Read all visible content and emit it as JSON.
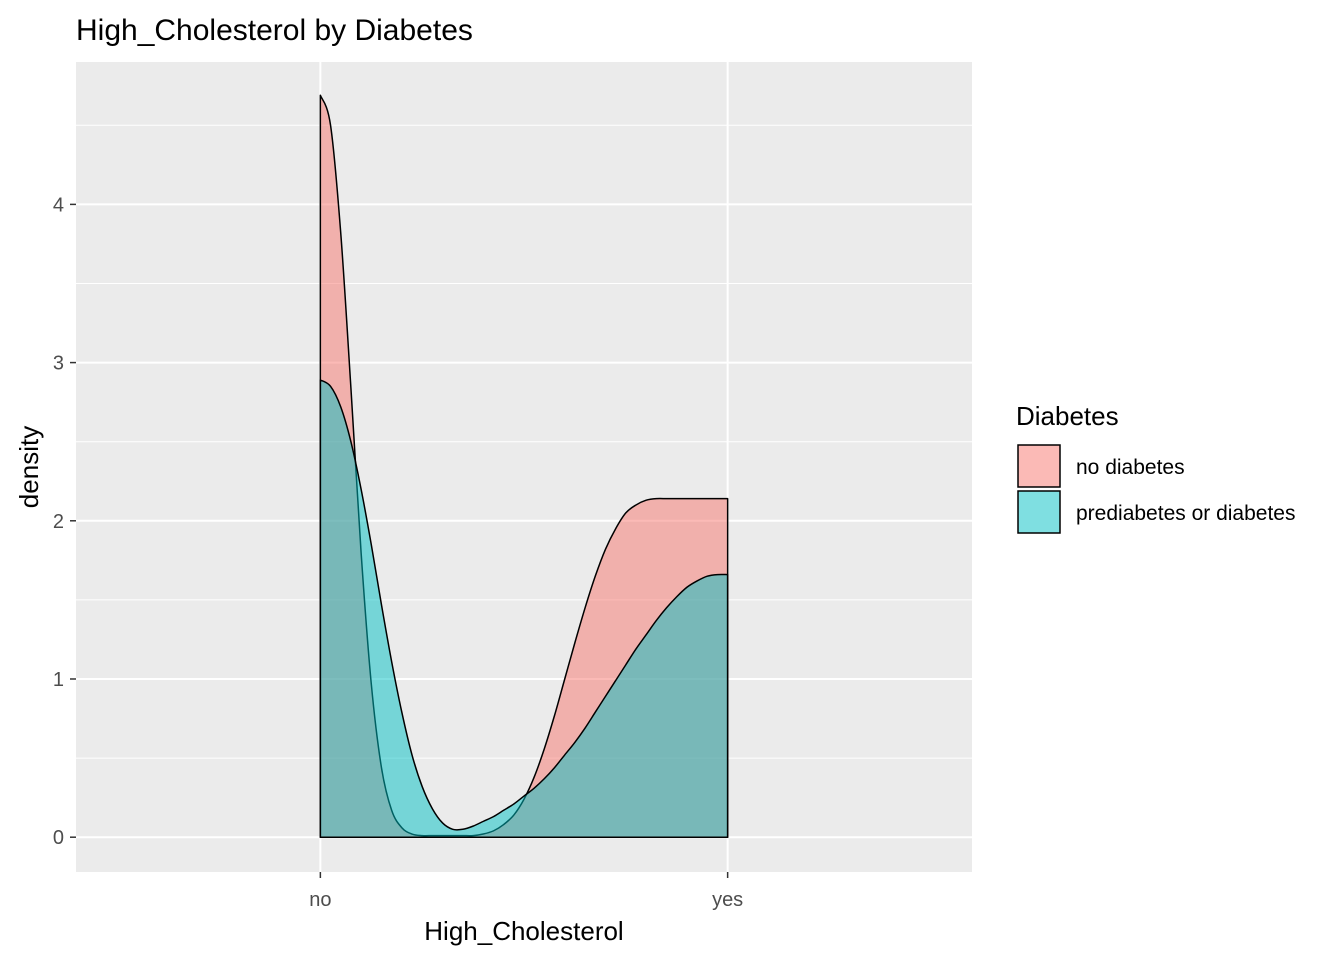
{
  "chart_data": {
    "type": "area",
    "title": "High_Cholesterol by Diabetes",
    "xlabel": "High_Cholesterol",
    "ylabel": "density",
    "x_categories": [
      "no",
      "yes"
    ],
    "x_range": [
      -0.6,
      1.6
    ],
    "ylim": [
      -0.22,
      4.9
    ],
    "y_ticks": [
      0,
      1,
      2,
      3,
      4
    ],
    "grid": true,
    "legend": {
      "title": "Diabetes",
      "placement": "right"
    },
    "series": [
      {
        "name": "no diabetes",
        "color": "#F8766D",
        "x": [
          0,
          0.025,
          0.05,
          0.075,
          0.1,
          0.125,
          0.15,
          0.175,
          0.2,
          0.225,
          0.25,
          0.275,
          0.3,
          0.325,
          0.35,
          0.375,
          0.4,
          0.425,
          0.45,
          0.475,
          0.5,
          0.525,
          0.55,
          0.575,
          0.6,
          0.625,
          0.65,
          0.675,
          0.7,
          0.725,
          0.75,
          0.775,
          0.8,
          0.825,
          0.85,
          0.875,
          0.9,
          0.925,
          0.95,
          0.975,
          1
        ],
        "y": [
          4.69,
          4.5,
          3.82,
          2.84,
          1.8,
          0.97,
          0.44,
          0.17,
          0.06,
          0.02,
          0.01,
          0.01,
          0.01,
          0.01,
          0.01,
          0.01,
          0.02,
          0.04,
          0.08,
          0.14,
          0.24,
          0.38,
          0.56,
          0.77,
          1.0,
          1.23,
          1.45,
          1.65,
          1.82,
          1.95,
          2.05,
          2.1,
          2.13,
          2.14,
          2.14,
          2.14,
          2.14,
          2.14,
          2.14,
          2.14,
          2.14
        ]
      },
      {
        "name": "prediabetes or diabetes",
        "color": "#00BFC4",
        "x": [
          0,
          0.025,
          0.05,
          0.075,
          0.1,
          0.125,
          0.15,
          0.175,
          0.2,
          0.225,
          0.25,
          0.275,
          0.3,
          0.325,
          0.35,
          0.375,
          0.4,
          0.425,
          0.45,
          0.475,
          0.5,
          0.525,
          0.55,
          0.575,
          0.6,
          0.625,
          0.65,
          0.675,
          0.7,
          0.725,
          0.75,
          0.775,
          0.8,
          0.825,
          0.85,
          0.875,
          0.9,
          0.925,
          0.95,
          0.975,
          1
        ],
        "y": [
          2.89,
          2.85,
          2.72,
          2.5,
          2.2,
          1.85,
          1.47,
          1.11,
          0.79,
          0.52,
          0.32,
          0.18,
          0.09,
          0.05,
          0.05,
          0.07,
          0.1,
          0.13,
          0.17,
          0.21,
          0.26,
          0.31,
          0.37,
          0.44,
          0.52,
          0.6,
          0.69,
          0.79,
          0.89,
          0.99,
          1.09,
          1.19,
          1.28,
          1.37,
          1.45,
          1.52,
          1.58,
          1.62,
          1.65,
          1.66,
          1.66
        ]
      }
    ]
  }
}
